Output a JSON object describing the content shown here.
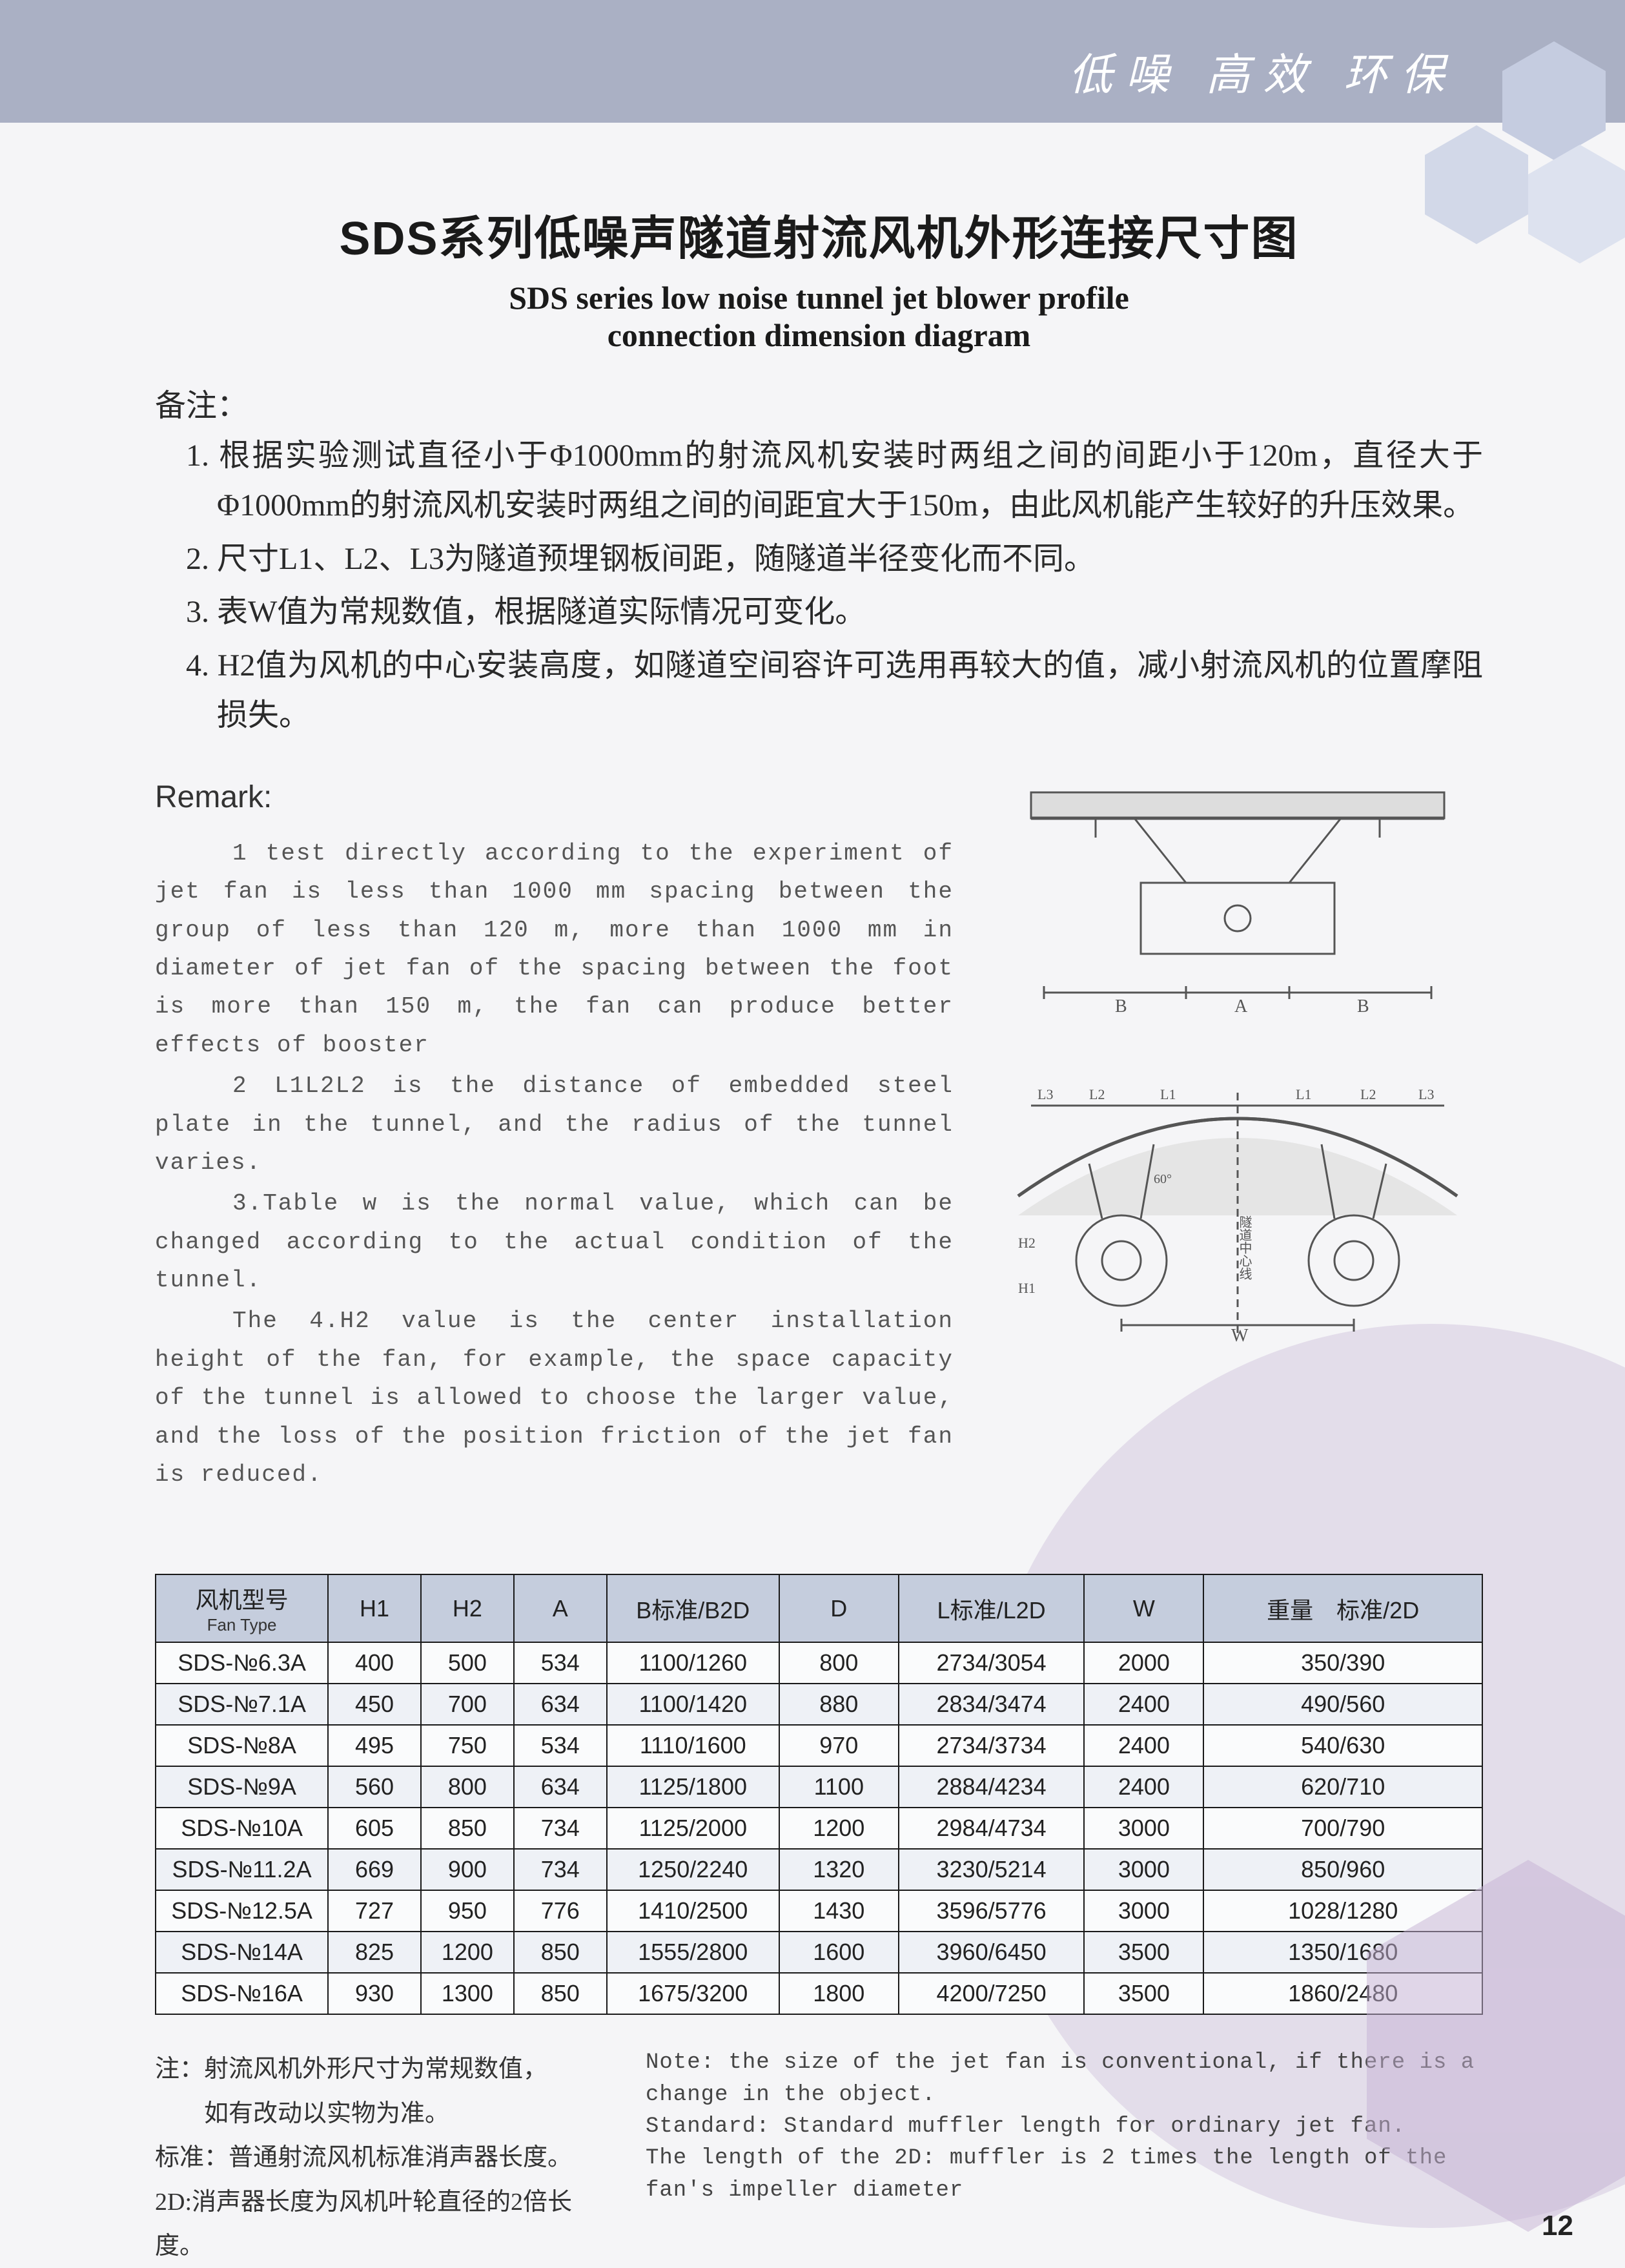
{
  "header": {
    "tagline": "低噪 高效 环保"
  },
  "title": {
    "cn": "SDS系列低噪声隧道射流风机外形连接尺寸图",
    "en_line1": "SDS series low noise tunnel jet blower profile",
    "en_line2": "connection dimension diagram"
  },
  "notes_cn": {
    "label": "备注：",
    "items": [
      "1. 根据实验测试直径小于Φ1000mm的射流风机安装时两组之间的间距小于120m，直径大于Φ1000mm的射流风机安装时两组之间的间距宜大于150m，由此风机能产生较好的升压效果。",
      "2. 尺寸L1、L2、L3为隧道预埋钢板间距，随隧道半径变化而不同。",
      "3. 表W值为常规数值，根据隧道实际情况可变化。",
      "4. H2值为风机的中心安装高度，如隧道空间容许可选用再较大的值，减小射流风机的位置摩阻损失。"
    ]
  },
  "remark": {
    "label": "Remark:",
    "paras": [
      "1 test directly according to the experiment of jet fan is less than 1000 mm spacing between the group of less than 120 m, more than 1000 mm in diameter of jet fan of the spacing between the foot is more than 150 m, the fan can produce better effects of booster",
      "2 L1L2L2 is the distance of embedded steel plate in the tunnel, and the radius of the tunnel varies.",
      "3.Table w is the normal value, which can be changed according to the actual condition of the tunnel.",
      "The 4.H2 value is the center installation height of the fan, for example, the space capacity of the tunnel is allowed to choose the larger value, and the loss of the position friction of the jet fan is reduced."
    ]
  },
  "diagrams": {
    "top_labels": {
      "B": "B",
      "A": "A",
      "B2": "B"
    },
    "bottom_labels": {
      "L3a": "L3",
      "L2a": "L2",
      "L1a": "L1",
      "L1b": "L1",
      "L2b": "L2",
      "L3b": "L3",
      "W": "W",
      "center": "隧道中心线",
      "H2": "H2",
      "H1": "H1",
      "ang": "60°"
    }
  },
  "table": {
    "columns": [
      {
        "cn": "风机型号",
        "en": "Fan Type"
      },
      {
        "cn": "H1",
        "en": ""
      },
      {
        "cn": "H2",
        "en": ""
      },
      {
        "cn": "A",
        "en": ""
      },
      {
        "cn": "B标准/B2D",
        "en": ""
      },
      {
        "cn": "D",
        "en": ""
      },
      {
        "cn": "L标准/L2D",
        "en": ""
      },
      {
        "cn": "W",
        "en": ""
      },
      {
        "cn": "重量　标准/2D",
        "en": ""
      }
    ],
    "rows": [
      [
        "SDS-№6.3A",
        "400",
        "500",
        "534",
        "1100/1260",
        "800",
        "2734/3054",
        "2000",
        "350/390"
      ],
      [
        "SDS-№7.1A",
        "450",
        "700",
        "634",
        "1100/1420",
        "880",
        "2834/3474",
        "2400",
        "490/560"
      ],
      [
        "SDS-№8A",
        "495",
        "750",
        "534",
        "1110/1600",
        "970",
        "2734/3734",
        "2400",
        "540/630"
      ],
      [
        "SDS-№9A",
        "560",
        "800",
        "634",
        "1125/1800",
        "1100",
        "2884/4234",
        "2400",
        "620/710"
      ],
      [
        "SDS-№10A",
        "605",
        "850",
        "734",
        "1125/2000",
        "1200",
        "2984/4734",
        "3000",
        "700/790"
      ],
      [
        "SDS-№11.2A",
        "669",
        "900",
        "734",
        "1250/2240",
        "1320",
        "3230/5214",
        "3000",
        "850/960"
      ],
      [
        "SDS-№12.5A",
        "727",
        "950",
        "776",
        "1410/2500",
        "1430",
        "3596/5776",
        "3000",
        "1028/1280"
      ],
      [
        "SDS-№14A",
        "825",
        "1200",
        "850",
        "1555/2800",
        "1600",
        "3960/6450",
        "3500",
        "1350/1680"
      ],
      [
        "SDS-№16A",
        "930",
        "1300",
        "850",
        "1675/3200",
        "1800",
        "4200/7250",
        "3500",
        "1860/2480"
      ]
    ],
    "style": {
      "header_bg": "#c5cddd",
      "row_even_bg": "#eef1f6",
      "row_odd_bg": "#fafbfc",
      "border_color": "#1a1a1a",
      "font_size": 36,
      "col_widths_pct": [
        13,
        7,
        7,
        7,
        13,
        9,
        14,
        9,
        21
      ]
    }
  },
  "footer": {
    "cn": [
      "注：射流风机外形尺寸为常规数值，",
      "　　如有改动以实物为准。",
      "标准：普通射流风机标准消声器长度。",
      "2D:消声器长度为风机叶轮直径的2倍长度。"
    ],
    "en": [
      "Note: the size of the jet fan is conventional, if there is a change in the object.",
      "Standard: Standard muffler length for ordinary jet fan.",
      "The length of the 2D: muffler is 2 times the length of the fan's impeller diameter"
    ]
  },
  "page_number": "12",
  "colors": {
    "banner_bg": "#aab0c4",
    "hex_light": "#dde2ef",
    "hex_mid": "#d2d8e8",
    "hex_dark": "#c5cce0",
    "body_text": "#2a2a2a",
    "arc": "#d2c5dd"
  }
}
